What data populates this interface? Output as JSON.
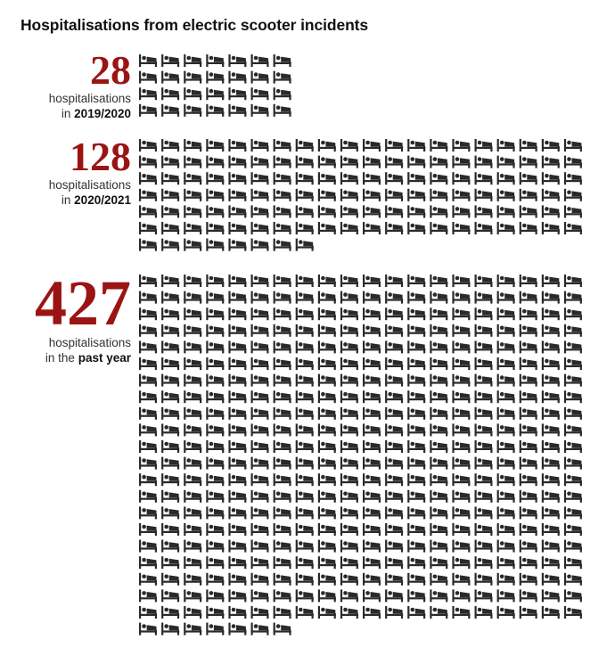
{
  "title": "Hospitalisations from electric scooter incidents",
  "icon": "hospital-bed-icon",
  "accent_color": "#9b1414",
  "icon_color": "#2a2a2a",
  "chart_data": {
    "type": "pictogram",
    "title": "Hospitalisations from electric scooter incidents",
    "unit": "1 icon = 1 hospitalisation",
    "series": [
      {
        "value": "28",
        "count": 28,
        "caption_prefix": "hospitalisations",
        "caption_in": "in",
        "period": "2019/2020"
      },
      {
        "value": "128",
        "count": 128,
        "caption_prefix": "hospitalisations",
        "caption_in": "in",
        "period": "2020/2021"
      },
      {
        "value": "427",
        "count": 427,
        "caption_prefix": "hospitalisations",
        "caption_in": "in the",
        "period": "past year"
      }
    ]
  }
}
